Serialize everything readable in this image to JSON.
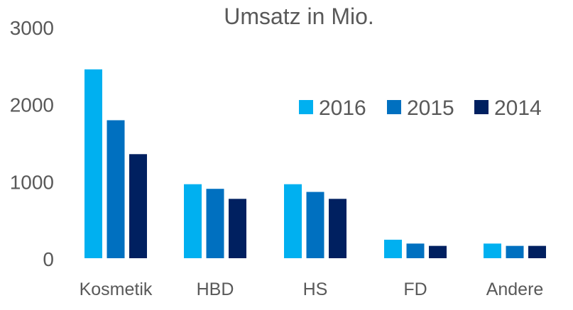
{
  "chart_data": {
    "type": "bar",
    "title": "Umsatz in Mio.",
    "categories": [
      "Kosmetik",
      "HBD",
      "HS",
      "FD",
      "Andere"
    ],
    "series": [
      {
        "name": "2016",
        "color": "#00B0F0",
        "values": [
          2450,
          960,
          960,
          240,
          190
        ]
      },
      {
        "name": "2015",
        "color": "#0070C0",
        "values": [
          1790,
          900,
          860,
          190,
          160
        ]
      },
      {
        "name": "2014",
        "color": "#002060",
        "values": [
          1350,
          770,
          770,
          160,
          160
        ]
      }
    ],
    "yticks": [
      "0",
      "1000",
      "2000",
      "3000"
    ],
    "ylim": [
      0,
      3000
    ],
    "legend_position": "top-right",
    "grid": false
  }
}
